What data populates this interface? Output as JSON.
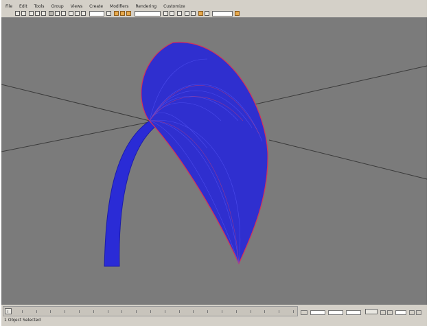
{
  "menubar": {
    "items": [
      "File",
      "Edit",
      "Tools",
      "Group",
      "Views",
      "Create",
      "Modifiers",
      "Rendering",
      "Customize"
    ]
  },
  "toolbar": {
    "tools": [
      "undo-icon",
      "redo-icon",
      "select-link-icon",
      "unlink-icon",
      "bind-icon",
      "select-icon",
      "select-by-name-icon",
      "select-region-icon",
      "move-icon",
      "rotate-icon",
      "scale-icon",
      "reference-coord-icon",
      "pivot-icon",
      "snap-icon",
      "angle-snap-icon",
      "percent-snap-icon",
      "mirror-icon",
      "align-icon",
      "layer-icon",
      "curve-editor-icon",
      "schematic-icon",
      "material-editor-icon",
      "render-setup-icon",
      "render-icon"
    ],
    "named_selection_value": ""
  },
  "viewport": {
    "background": "#7b7b7b",
    "axis_line_color": "#333333",
    "object_color": "#2a2bd6",
    "highlight_color": "#d8305a"
  },
  "trackbar": {
    "tick_count": 20
  },
  "status": {
    "text": "1 Object Selected"
  },
  "colors": {
    "ui_gray": "#d4d0c8"
  }
}
